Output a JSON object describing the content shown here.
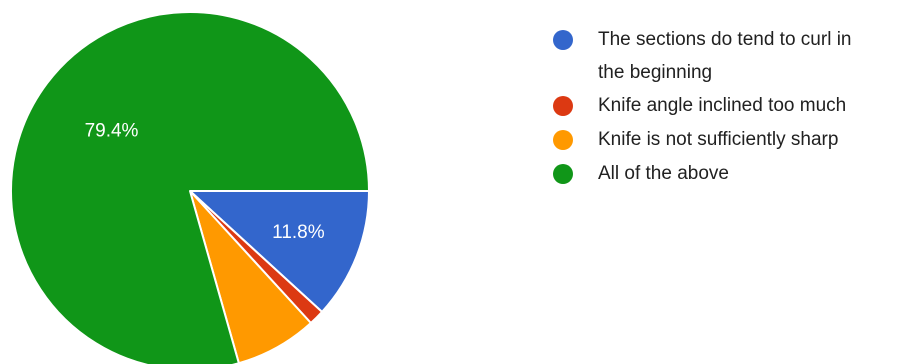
{
  "chart_data": {
    "type": "pie",
    "start_angle_deg": 90,
    "direction": "clockwise",
    "legend_position": "right",
    "slices": [
      {
        "label_lines": [
          "The sections do tend to curl in",
          "the beginning"
        ],
        "value": 11.8,
        "display": "11.8%",
        "color": "#3366cc"
      },
      {
        "label_lines": [
          "Knife angle inclined too much"
        ],
        "value": 1.4,
        "display": "",
        "color": "#dc3912"
      },
      {
        "label_lines": [
          "Knife is not sufficiently sharp"
        ],
        "value": 7.4,
        "display": "",
        "color": "#ff9900"
      },
      {
        "label_lines": [
          "All of the above"
        ],
        "value": 79.4,
        "display": "79.4%",
        "color": "#109618"
      }
    ]
  }
}
